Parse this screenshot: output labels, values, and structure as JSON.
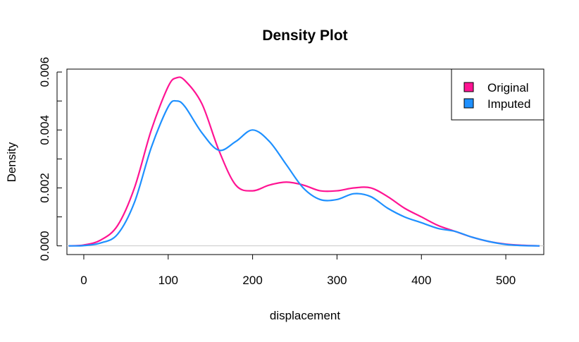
{
  "chart_data": {
    "type": "line",
    "title": "Density Plot",
    "xlabel": "displacement",
    "ylabel": "Density",
    "xlim": [
      -20,
      545
    ],
    "ylim": [
      -0.0003,
      0.0061
    ],
    "x_ticks": [
      0,
      100,
      200,
      300,
      400,
      500
    ],
    "x_tick_labels": [
      "0",
      "100",
      "200",
      "300",
      "400",
      "500"
    ],
    "y_ticks": [
      0.0,
      0.002,
      0.004,
      0.006
    ],
    "y_tick_labels": [
      "0.000",
      "0.002",
      "0.004",
      "0.006"
    ],
    "y_minor_ticks": [
      0.0,
      0.001,
      0.002,
      0.003,
      0.004,
      0.005,
      0.006
    ],
    "baseline": 0,
    "grid": false,
    "legend_position": "top-right",
    "series": [
      {
        "name": "Original",
        "color": "#FF1493",
        "x": [
          -18,
          0,
          20,
          40,
          60,
          80,
          100,
          110,
          120,
          140,
          160,
          180,
          200,
          220,
          240,
          260,
          280,
          300,
          320,
          340,
          360,
          380,
          400,
          420,
          440,
          460,
          480,
          500,
          520,
          540
        ],
        "y": [
          0.0,
          3e-05,
          0.0002,
          0.0007,
          0.002,
          0.004,
          0.0055,
          0.0058,
          0.0057,
          0.0049,
          0.0033,
          0.0021,
          0.0019,
          0.0021,
          0.0022,
          0.0021,
          0.0019,
          0.0019,
          0.002,
          0.002,
          0.0017,
          0.0013,
          0.001,
          0.0007,
          0.0005,
          0.0003,
          0.00015,
          6e-05,
          2e-05,
          0.0
        ]
      },
      {
        "name": "Imputed",
        "color": "#1E90FF",
        "x": [
          -18,
          0,
          20,
          40,
          60,
          80,
          100,
          110,
          120,
          140,
          160,
          180,
          200,
          220,
          240,
          260,
          280,
          300,
          320,
          340,
          360,
          380,
          400,
          420,
          440,
          460,
          480,
          500,
          520,
          540
        ],
        "y": [
          0.0,
          1e-05,
          0.0001,
          0.0004,
          0.0015,
          0.0034,
          0.0048,
          0.005,
          0.0048,
          0.0039,
          0.0033,
          0.0036,
          0.004,
          0.0036,
          0.0028,
          0.002,
          0.0016,
          0.0016,
          0.0018,
          0.0017,
          0.0013,
          0.001,
          0.0008,
          0.0006,
          0.0005,
          0.0003,
          0.00015,
          5e-05,
          1e-05,
          0.0
        ]
      }
    ]
  }
}
